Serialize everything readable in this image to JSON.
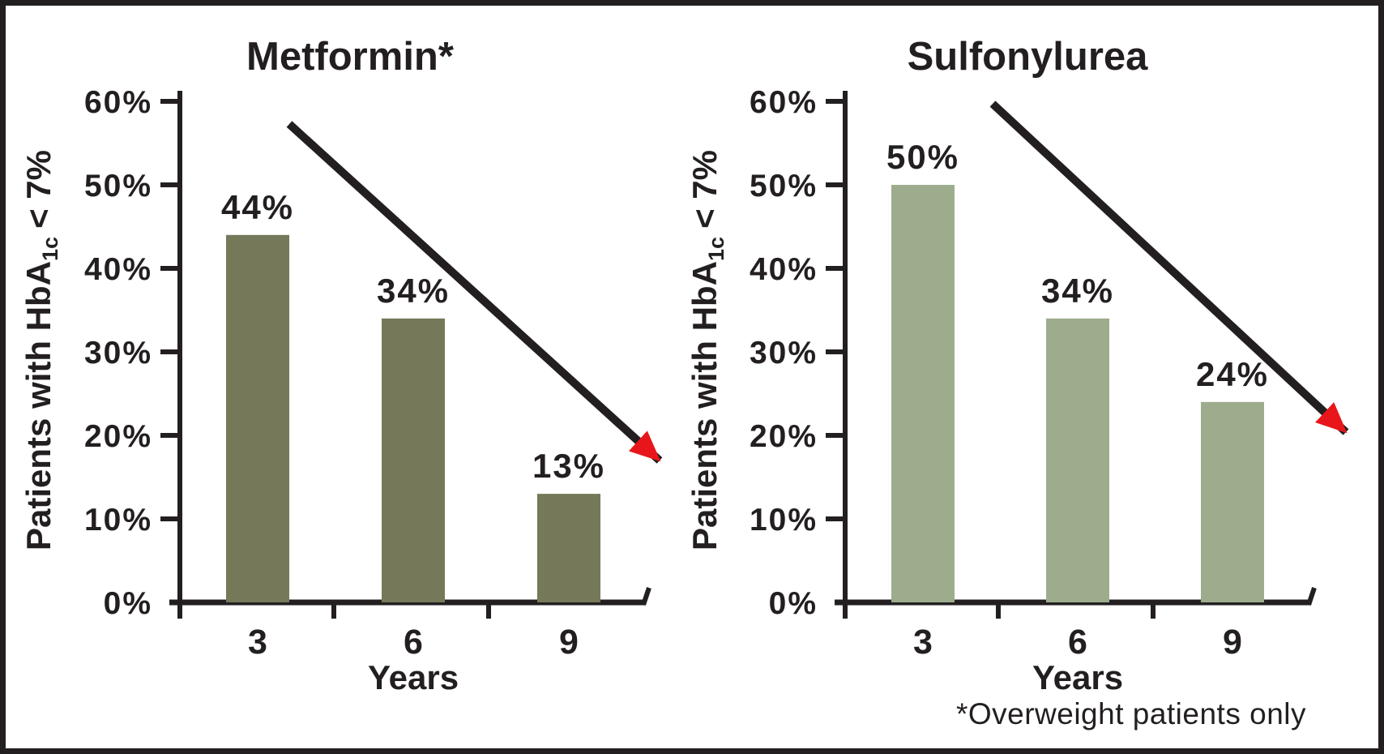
{
  "figure": {
    "footnote": "*Overweight patients only"
  },
  "colors": {
    "text": "#231f20",
    "frame": "#231f20",
    "trend_arrow_red": "#e8161b",
    "metformin_bar": "#75795a",
    "sulfonylurea_bar": "#9dac8d",
    "background": "#ffffff"
  },
  "chart_data": [
    {
      "type": "bar",
      "title": "Metformin*",
      "categories": [
        "3",
        "6",
        "9"
      ],
      "values": [
        44,
        34,
        13
      ],
      "value_labels": [
        "44%",
        "34%",
        "13%"
      ],
      "xlabel": "Years",
      "ylabel": {
        "prefix": "Patients with HbA",
        "sub": "1c",
        "suffix": "< 7%"
      },
      "y_ticks": [
        "0%",
        "10%",
        "20%",
        "30%",
        "40%",
        "50%",
        "60%"
      ],
      "ylim": [
        0,
        60
      ],
      "grid": false,
      "legend": "none",
      "bar_color_key": "metformin_bar",
      "annotation": "red diagonal arrow sloping down from upper-left to lower-right"
    },
    {
      "type": "bar",
      "title": "Sulfonylurea",
      "categories": [
        "3",
        "6",
        "9"
      ],
      "values": [
        50,
        34,
        24
      ],
      "value_labels": [
        "50%",
        "34%",
        "24%"
      ],
      "xlabel": "Years",
      "ylabel": {
        "prefix": "Patients with HbA",
        "sub": "1c",
        "suffix": "< 7%"
      },
      "y_ticks": [
        "0%",
        "10%",
        "20%",
        "30%",
        "40%",
        "50%",
        "60%"
      ],
      "ylim": [
        0,
        60
      ],
      "grid": false,
      "legend": "none",
      "bar_color_key": "sulfonylurea_bar",
      "annotation": "red diagonal arrow sloping down from upper-left to lower-right"
    }
  ]
}
